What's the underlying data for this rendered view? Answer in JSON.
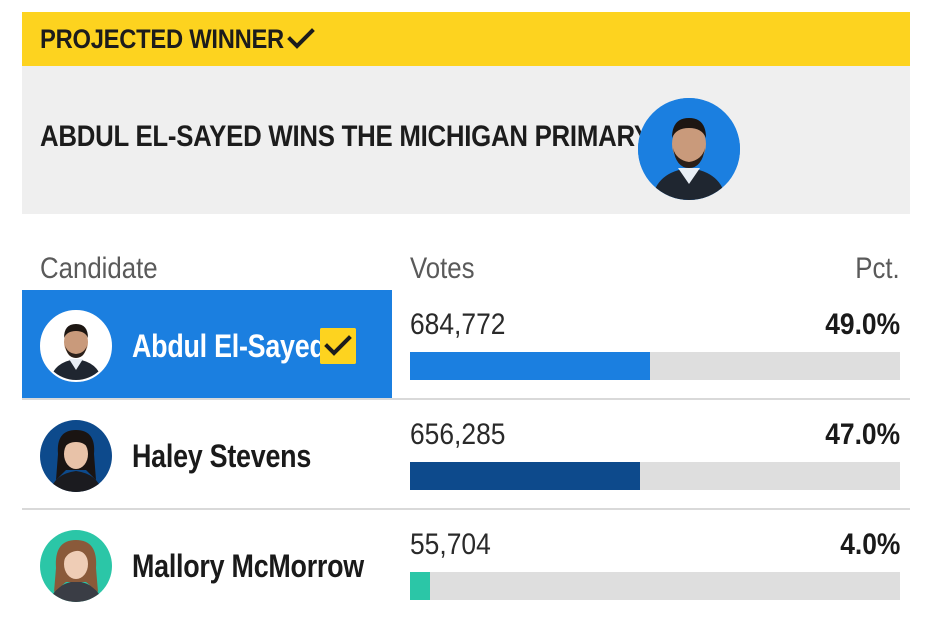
{
  "banner": {
    "label": "PROJECTED WINNER",
    "check_icon": "check-icon",
    "color": "#fdd31f"
  },
  "headline": {
    "text": "ABDUL EL-SAYED WINS THE MICHIGAN PRIMARY",
    "avatar_icon": "candidate-photo"
  },
  "table": {
    "headers": {
      "candidate": "Candidate",
      "votes": "Votes",
      "pct": "Pct."
    },
    "rows": [
      {
        "name": "Abdul El-Sayed",
        "votes": "684,772",
        "pct": "49.0%",
        "share": 49.0,
        "winner": true,
        "color": "#1b7fe0"
      },
      {
        "name": "Haley Stevens",
        "votes": "656,285",
        "pct": "47.0%",
        "share": 47.0,
        "winner": false,
        "color": "#0d4a8c"
      },
      {
        "name": "Mallory McMorrow",
        "votes": "55,704",
        "pct": "4.0%",
        "share": 4.0,
        "winner": false,
        "color": "#2bc6a7"
      }
    ]
  }
}
